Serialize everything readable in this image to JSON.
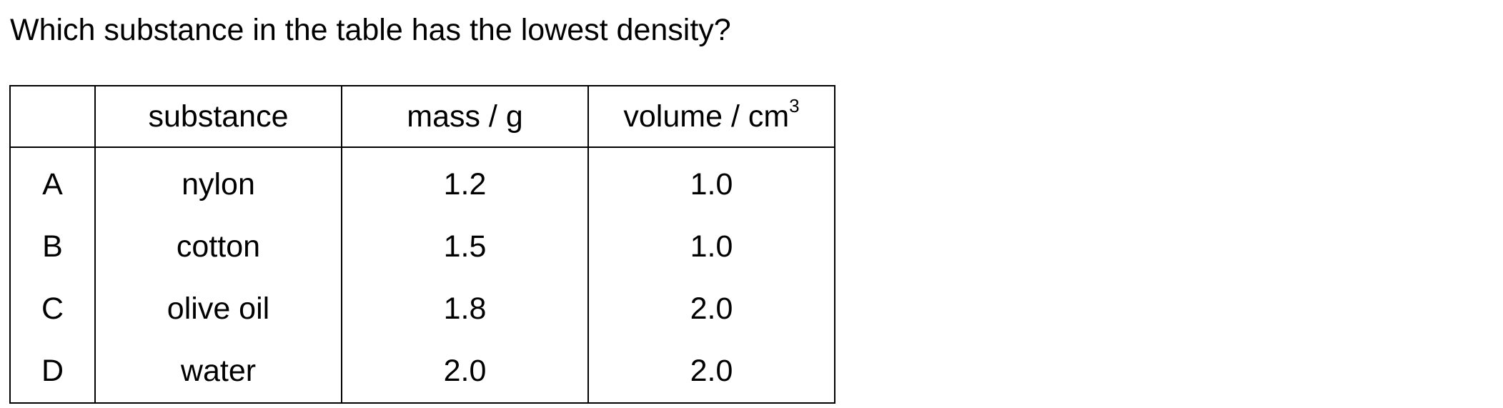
{
  "question": "Which substance in the table has the lowest density?",
  "table": {
    "headers": {
      "letter": "",
      "substance": "substance",
      "mass": "mass / g",
      "volume_base": "volume / cm",
      "volume_sup": "3"
    },
    "rows": [
      {
        "letter": "A",
        "substance": "nylon",
        "mass": "1.2",
        "volume": "1.0"
      },
      {
        "letter": "B",
        "substance": "cotton",
        "mass": "1.5",
        "volume": "1.0"
      },
      {
        "letter": "C",
        "substance": "olive oil",
        "mass": "1.8",
        "volume": "2.0"
      },
      {
        "letter": "D",
        "substance": "water",
        "mass": "2.0",
        "volume": "2.0"
      }
    ]
  }
}
